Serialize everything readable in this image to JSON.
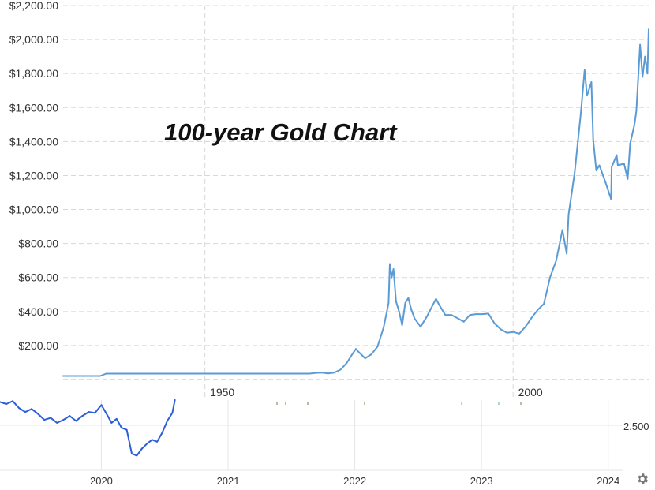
{
  "chart_data": [
    {
      "type": "line",
      "title": "100-year Gold Chart",
      "xlabel": "",
      "ylabel": "",
      "x_ticks": [
        "1950",
        "2000"
      ],
      "y_ticks": [
        "$200.00",
        "$400.00",
        "$600.00",
        "$800.00",
        "$1,000.00",
        "$1,200.00",
        "$1,400.00",
        "$1,600.00",
        "$1,800.00",
        "$2,000.00",
        "$2,200.00"
      ],
      "xlim": [
        1927,
        2022
      ],
      "ylim": [
        0,
        2200
      ],
      "grid": true,
      "line_color": "#5b9bd5",
      "series": [
        {
          "values": [
            [
              1927,
              20.7
            ],
            [
              1933,
              20.7
            ],
            [
              1934,
              35
            ],
            [
              1940,
              35
            ],
            [
              1950,
              35
            ],
            [
              1960,
              35
            ],
            [
              1967,
              35
            ],
            [
              1968,
              39
            ],
            [
              1969,
              41
            ],
            [
              1970,
              36
            ],
            [
              1971,
              41
            ],
            [
              1972,
              58
            ],
            [
              1973,
              97
            ],
            [
              1974,
              154
            ],
            [
              1974.5,
              180
            ],
            [
              1975,
              160
            ],
            [
              1976,
              125
            ],
            [
              1977,
              148
            ],
            [
              1978,
              193
            ],
            [
              1979,
              306
            ],
            [
              1979.8,
              450
            ],
            [
              1980,
              680
            ],
            [
              1980.3,
              600
            ],
            [
              1980.6,
              650
            ],
            [
              1981,
              460
            ],
            [
              1981.5,
              400
            ],
            [
              1982,
              320
            ],
            [
              1982.5,
              450
            ],
            [
              1983,
              480
            ],
            [
              1983.5,
              410
            ],
            [
              1984,
              360
            ],
            [
              1985,
              310
            ],
            [
              1985.5,
              340
            ],
            [
              1986,
              370
            ],
            [
              1987,
              440
            ],
            [
              1987.5,
              475
            ],
            [
              1988,
              440
            ],
            [
              1989,
              380
            ],
            [
              1990,
              380
            ],
            [
              1991,
              360
            ],
            [
              1992,
              340
            ],
            [
              1993,
              380
            ],
            [
              1994,
              385
            ],
            [
              1995,
              385
            ],
            [
              1996,
              388
            ],
            [
              1997,
              330
            ],
            [
              1998,
              295
            ],
            [
              1999,
              275
            ],
            [
              2000,
              280
            ],
            [
              2001,
              270
            ],
            [
              2002,
              310
            ],
            [
              2003,
              363
            ],
            [
              2004,
              410
            ],
            [
              2005,
              445
            ],
            [
              2006,
              600
            ],
            [
              2006.5,
              650
            ],
            [
              2007,
              700
            ],
            [
              2008,
              880
            ],
            [
              2008.7,
              740
            ],
            [
              2009,
              970
            ],
            [
              2010,
              1220
            ],
            [
              2011,
              1570
            ],
            [
              2011.6,
              1820
            ],
            [
              2012,
              1670
            ],
            [
              2012.7,
              1750
            ],
            [
              2013,
              1410
            ],
            [
              2013.5,
              1230
            ],
            [
              2014,
              1260
            ],
            [
              2015,
              1160
            ],
            [
              2015.9,
              1060
            ],
            [
              2016,
              1250
            ],
            [
              2016.8,
              1320
            ],
            [
              2017,
              1260
            ],
            [
              2018,
              1270
            ],
            [
              2018.6,
              1180
            ],
            [
              2019,
              1390
            ],
            [
              2019.7,
              1500
            ],
            [
              2020,
              1580
            ],
            [
              2020.6,
              1970
            ],
            [
              2021,
              1780
            ],
            [
              2021.4,
              1900
            ],
            [
              2021.8,
              1800
            ],
            [
              2022,
              2060
            ]
          ]
        }
      ]
    },
    {
      "type": "line",
      "title": "",
      "xlabel": "",
      "ylabel": "",
      "x_ticks": [
        "2020",
        "2021",
        "2022",
        "2023",
        "2024"
      ],
      "y_ticks": [
        "2.500"
      ],
      "xlim": [
        2019.2,
        2024.12
      ],
      "ylim": [
        2.2,
        2.9
      ],
      "grid": true,
      "line_color": "#2b5fd9",
      "series": [
        {
          "values": [
            [
              2019.2,
              2.88
            ],
            [
              2019.25,
              2.86
            ],
            [
              2019.3,
              2.89
            ],
            [
              2019.35,
              2.82
            ],
            [
              2019.4,
              2.78
            ],
            [
              2019.45,
              2.81
            ],
            [
              2019.5,
              2.76
            ],
            [
              2019.55,
              2.7
            ],
            [
              2019.6,
              2.72
            ],
            [
              2019.65,
              2.67
            ],
            [
              2019.7,
              2.7
            ],
            [
              2019.75,
              2.74
            ],
            [
              2019.8,
              2.69
            ],
            [
              2019.85,
              2.74
            ],
            [
              2019.9,
              2.78
            ],
            [
              2019.95,
              2.77
            ],
            [
              2020.0,
              2.85
            ],
            [
              2020.05,
              2.74
            ],
            [
              2020.08,
              2.67
            ],
            [
              2020.12,
              2.71
            ],
            [
              2020.16,
              2.62
            ],
            [
              2020.2,
              2.6
            ],
            [
              2020.24,
              2.36
            ],
            [
              2020.28,
              2.34
            ],
            [
              2020.32,
              2.41
            ],
            [
              2020.36,
              2.46
            ],
            [
              2020.4,
              2.5
            ],
            [
              2020.44,
              2.48
            ],
            [
              2020.48,
              2.57
            ],
            [
              2020.52,
              2.69
            ],
            [
              2020.56,
              2.77
            ],
            [
              2020.58,
              2.9
            ]
          ]
        }
      ]
    }
  ],
  "visible_fragments": [
    "1950",
    "2000"
  ],
  "settings_icon": "gear-icon"
}
